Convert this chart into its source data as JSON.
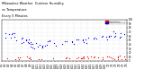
{
  "title_left": "Milwaukee Weather  Outdoor Humidity",
  "title_line2": "vs Temperature",
  "title_line3": "Every 5 Minutes",
  "background_color": "#ffffff",
  "plot_bg_color": "#ffffff",
  "grid_color": "#bbbbbb",
  "blue_color": "#0000ff",
  "red_color": "#ff0000",
  "legend_labels": [
    "Temperature",
    "Outdoor Humidity"
  ],
  "legend_colors": [
    "#ff0000",
    "#0000cd"
  ],
  "ylim": [
    0,
    100
  ],
  "xlim": [
    0,
    100
  ],
  "tick_fontsize": 2.0,
  "marker_size": 0.8,
  "ytick_right": true,
  "yticks": [
    0,
    10,
    20,
    30,
    40,
    50,
    60,
    70,
    80,
    90,
    100
  ],
  "seed": 99
}
